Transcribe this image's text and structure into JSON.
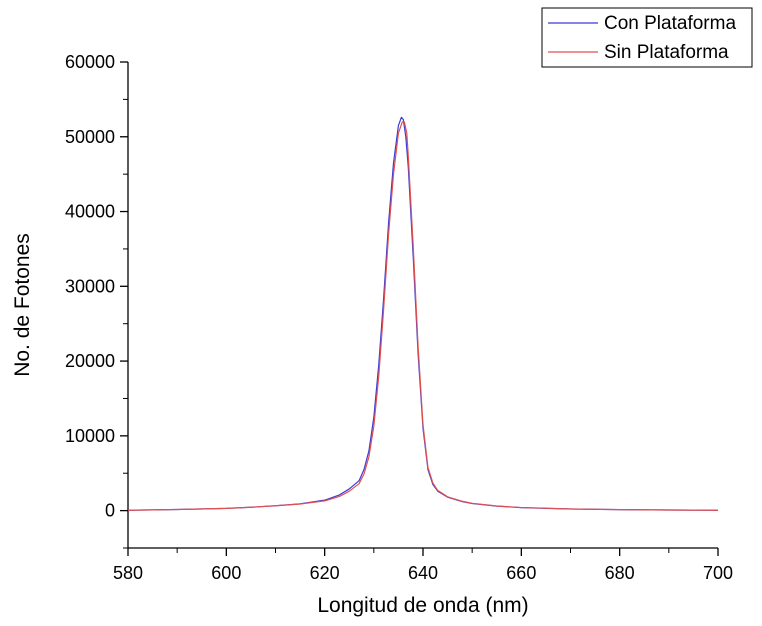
{
  "chart_data": {
    "type": "line",
    "title": "",
    "xlabel": "Longitud de onda (nm)",
    "ylabel": "No. de Fotones",
    "xlim": [
      580,
      700
    ],
    "ylim": [
      -5000,
      60000
    ],
    "xticks": [
      580,
      600,
      620,
      640,
      660,
      680,
      700
    ],
    "yticks": [
      0,
      10000,
      20000,
      30000,
      40000,
      50000,
      60000
    ],
    "grid": false,
    "legend_position": "top-right",
    "series": [
      {
        "name": "Con Plataforma",
        "color": "#3b3bd6",
        "x": [
          580,
          590,
          600,
          605,
          610,
          615,
          620,
          623,
          625,
          627,
          628,
          629,
          630,
          631,
          632,
          633,
          634,
          635,
          635.6,
          636,
          636.5,
          637,
          638,
          639,
          640,
          641,
          642,
          643,
          645,
          648,
          650,
          655,
          660,
          670,
          680,
          690,
          700
        ],
        "y": [
          50,
          150,
          300,
          450,
          650,
          900,
          1400,
          2100,
          2900,
          4000,
          5500,
          8000,
          12500,
          19500,
          28500,
          38500,
          46500,
          51500,
          52600,
          52300,
          50000,
          46000,
          34000,
          21000,
          11000,
          5500,
          3500,
          2600,
          1800,
          1200,
          950,
          600,
          400,
          220,
          130,
          80,
          50
        ]
      },
      {
        "name": "Sin Plataforma",
        "color": "#e05050",
        "x": [
          580,
          590,
          600,
          605,
          610,
          615,
          620,
          623,
          625,
          627,
          628,
          629,
          630,
          631,
          632,
          633,
          634,
          635,
          635.8,
          636.2,
          636.7,
          637,
          638,
          639,
          640,
          641,
          642,
          643,
          645,
          648,
          650,
          655,
          660,
          670,
          680,
          690,
          700
        ],
        "y": [
          50,
          150,
          300,
          450,
          650,
          880,
          1300,
          1900,
          2600,
          3600,
          4900,
          7200,
          11300,
          18000,
          27000,
          37000,
          45000,
          50500,
          52000,
          52000,
          50500,
          47500,
          35500,
          22000,
          11500,
          5800,
          3700,
          2700,
          1850,
          1250,
          980,
          620,
          410,
          225,
          135,
          85,
          50
        ]
      }
    ]
  }
}
